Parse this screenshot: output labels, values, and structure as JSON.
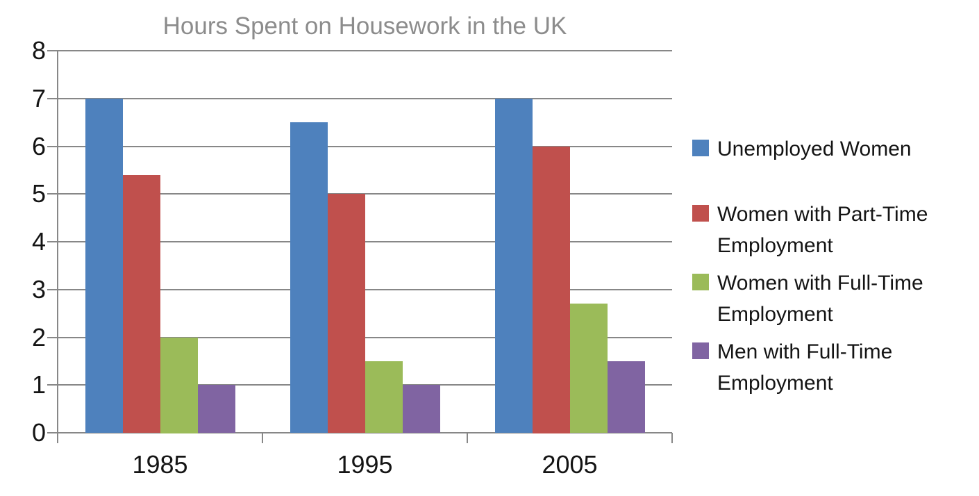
{
  "title": "Hours Spent on Housework in the UK",
  "chart_data": {
    "type": "bar",
    "title": "Hours Spent on Housework in the UK",
    "categories": [
      "1985",
      "1995",
      "2005"
    ],
    "series": [
      {
        "name": "Unemployed Women",
        "color": "#4E81BD",
        "values": [
          7,
          6.5,
          7
        ]
      },
      {
        "name": "Women with Part-Time Employment",
        "color": "#C0504D",
        "values": [
          5.4,
          5,
          6
        ]
      },
      {
        "name": "Women with Full-Time Employment",
        "color": "#9BBB59",
        "values": [
          2,
          1.5,
          2.7
        ]
      },
      {
        "name": "Men with Full-Time Employment",
        "color": "#8064A2",
        "values": [
          1,
          1,
          1.5
        ]
      }
    ],
    "xlabel": "",
    "ylabel": "",
    "ylim": [
      0,
      8
    ],
    "yticks": [
      0,
      1,
      2,
      3,
      4,
      5,
      6,
      7,
      8
    ],
    "grid": "horizontal",
    "legend_position": "right"
  },
  "colors": {
    "grid": "#878787",
    "axis": "#878787",
    "title_text": "#8C8C8C",
    "axis_label_text": "#141414",
    "legend_text": "#141414",
    "background": "#FFFFFF"
  }
}
